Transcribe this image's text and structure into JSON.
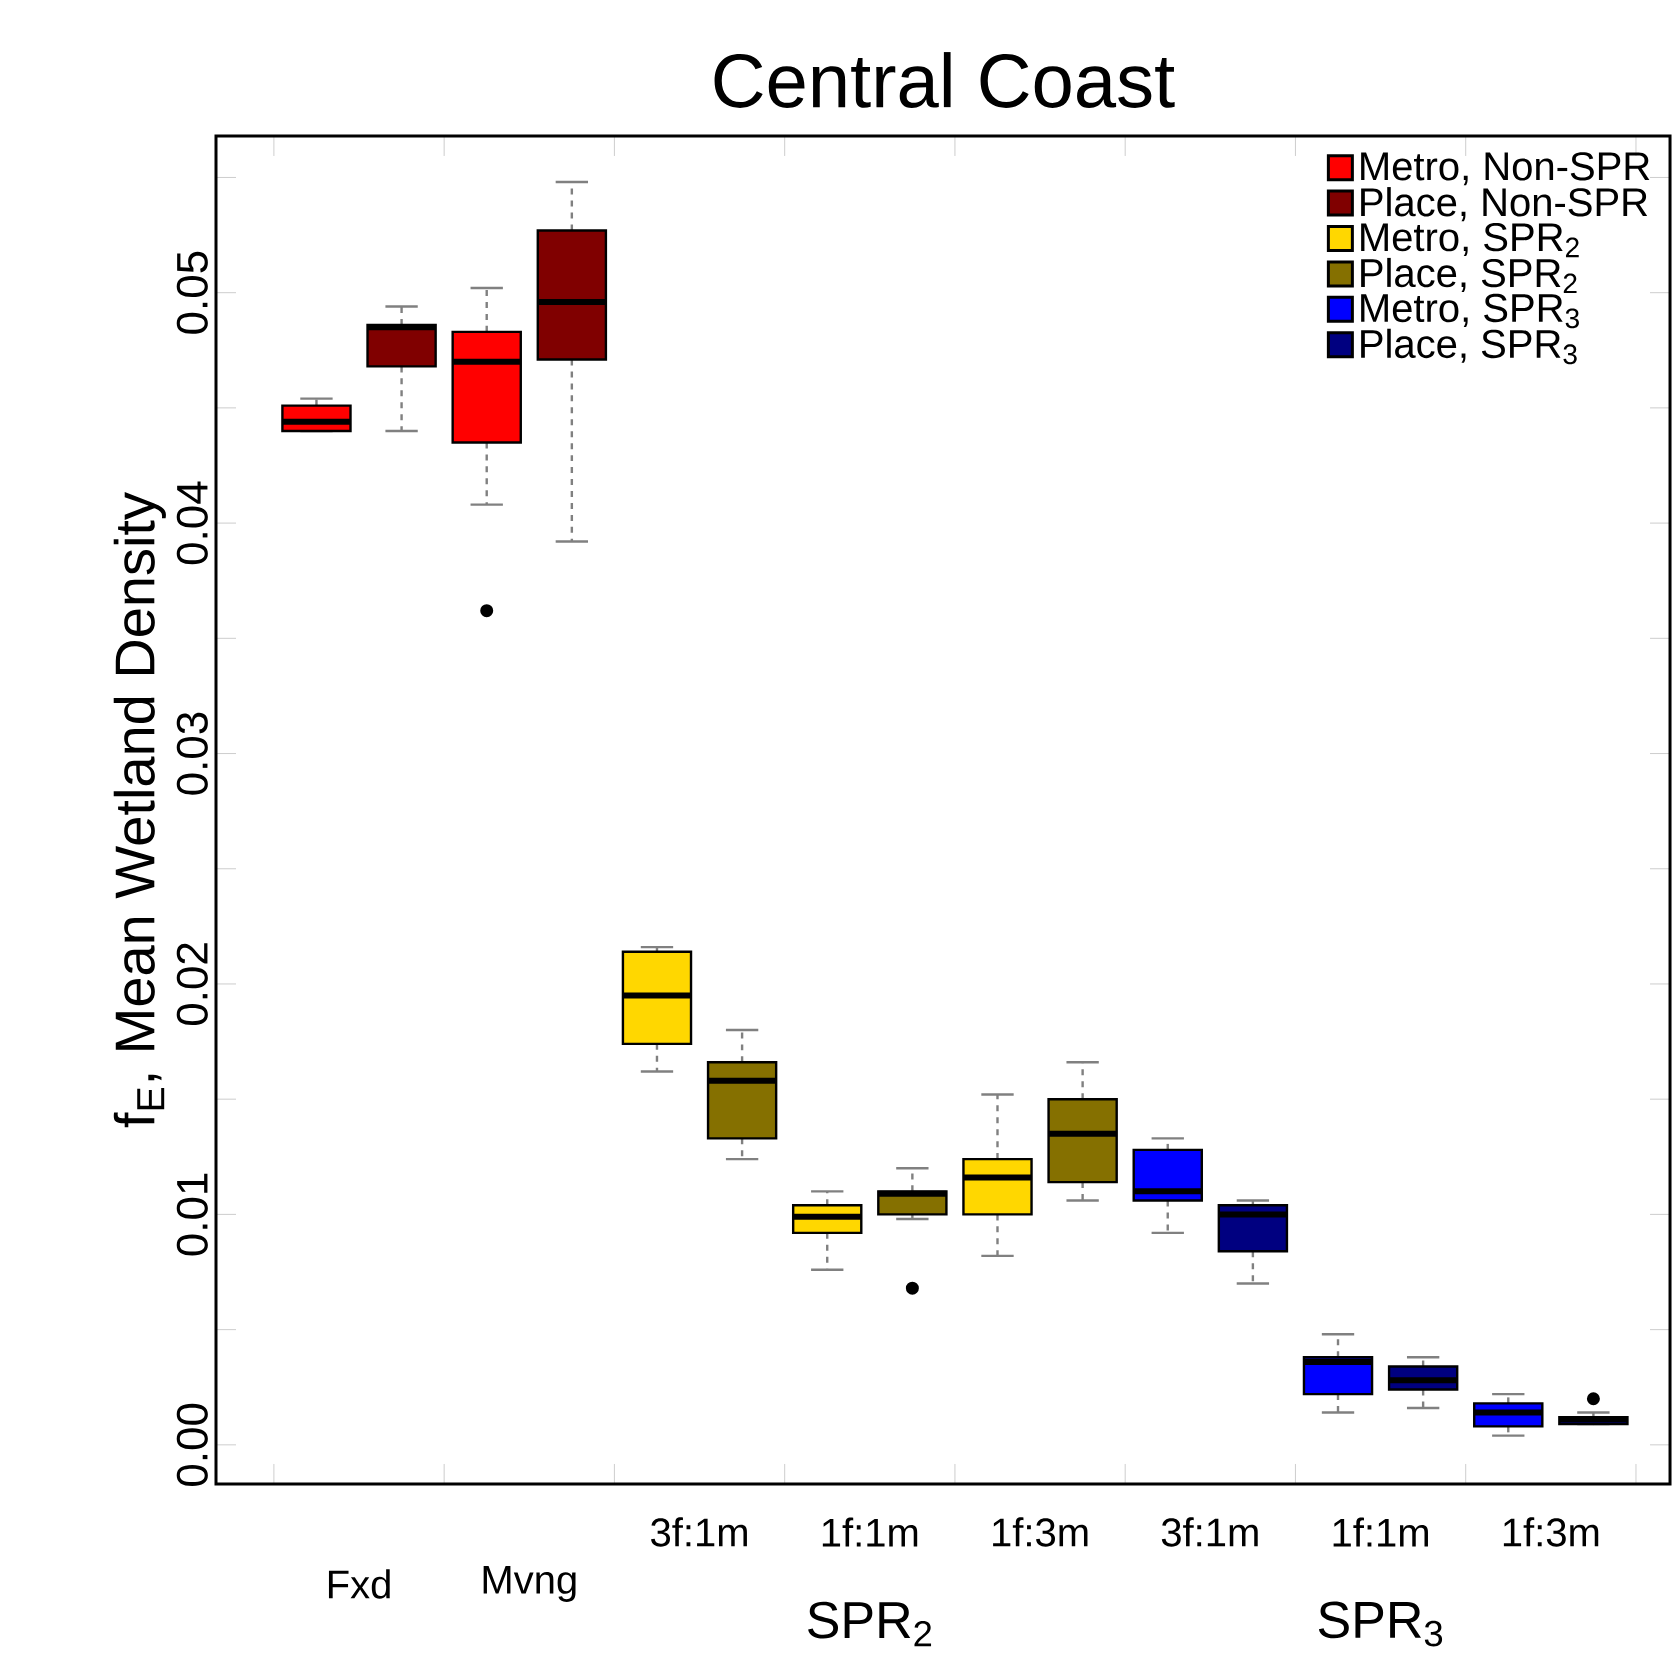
{
  "chart_data": {
    "type": "box",
    "title": "Central Coast",
    "ylabel": "f$_{E}$, Mean Wetland Density",
    "categories": [
      "Fxd",
      "Mvng",
      "3f:1m",
      "1f:1m",
      "1f:3m",
      "3f:1m",
      "1f:1m",
      "1f:3m"
    ],
    "annotations": [
      "SPR$_{2}$",
      "SPR$_{3}$"
    ],
    "ylim": [
      -0.0017,
      0.0568
    ],
    "yticks": [
      {
        "value": 0,
        "label": "0.00"
      },
      {
        "value": 0.005,
        "label": null
      },
      {
        "value": 0.01,
        "label": "0.01"
      },
      {
        "value": 0.015,
        "label": null
      },
      {
        "value": 0.02,
        "label": "0.02"
      },
      {
        "value": 0.025,
        "label": null
      },
      {
        "value": 0.03,
        "label": "0.03"
      },
      {
        "value": 0.035,
        "label": null
      },
      {
        "value": 0.04,
        "label": "0.04"
      },
      {
        "value": 0.045,
        "label": null
      },
      {
        "value": 0.05,
        "label": "0.05"
      },
      {
        "value": 0.055,
        "label": null
      }
    ],
    "legend": "top right",
    "series": [
      {
        "name": "Metro, Non-SPR",
        "color": "#ff0000",
        "boxes": [
          {
            "low": 0.044,
            "q1": 0.044,
            "median": 0.0444,
            "q3": 0.0451,
            "high": 0.0454
          },
          {
            "low": 0.0408,
            "q1": 0.0435,
            "median": 0.047,
            "q3": 0.0483,
            "high": 0.0502,
            "outliers": [
              0.0362
            ]
          },
          null,
          null,
          null,
          null,
          null,
          null
        ]
      },
      {
        "name": "Place, Non-SPR",
        "color": "#800000",
        "boxes": [
          {
            "low": 0.044,
            "q1": 0.0468,
            "median": 0.0485,
            "q3": 0.0486,
            "high": 0.0494
          },
          {
            "low": 0.0392,
            "q1": 0.0471,
            "median": 0.0496,
            "q3": 0.0527,
            "high": 0.0548
          },
          null,
          null,
          null,
          null,
          null,
          null
        ]
      },
      {
        "name": "Metro, SPR$_{2}$",
        "color": "#ffd700",
        "boxes": [
          null,
          null,
          {
            "low": 0.0162,
            "q1": 0.0174,
            "median": 0.0195,
            "q3": 0.0214,
            "high": 0.0216
          },
          {
            "low": 0.0076,
            "q1": 0.0092,
            "median": 0.0099,
            "q3": 0.0104,
            "high": 0.011
          },
          {
            "low": 0.0082,
            "q1": 0.01,
            "median": 0.0116,
            "q3": 0.0124,
            "high": 0.0152
          },
          null,
          null,
          null
        ]
      },
      {
        "name": "Place, SPR$_{2}$",
        "color": "#857000",
        "boxes": [
          null,
          null,
          {
            "low": 0.0124,
            "q1": 0.0133,
            "median": 0.0158,
            "q3": 0.0166,
            "high": 0.018
          },
          {
            "low": 0.0098,
            "q1": 0.01,
            "median": 0.0109,
            "q3": 0.011,
            "high": 0.012,
            "outliers": [
              0.0068
            ]
          },
          {
            "low": 0.0106,
            "q1": 0.0114,
            "median": 0.0135,
            "q3": 0.015,
            "high": 0.0166
          },
          null,
          null,
          null
        ]
      },
      {
        "name": "Metro, SPR$_{3}$",
        "color": "#0000ff",
        "boxes": [
          null,
          null,
          null,
          null,
          null,
          {
            "low": 0.0092,
            "q1": 0.0106,
            "median": 0.011,
            "q3": 0.0128,
            "high": 0.0133
          },
          {
            "low": 0.0014,
            "q1": 0.0022,
            "median": 0.0036,
            "q3": 0.0038,
            "high": 0.0048
          },
          {
            "low": 0.0004,
            "q1": 0.0008,
            "median": 0.0014,
            "q3": 0.0018,
            "high": 0.0022
          }
        ]
      },
      {
        "name": "Place, SPR$_{3}$",
        "color": "#000080",
        "boxes": [
          null,
          null,
          null,
          null,
          null,
          {
            "low": 0.007,
            "q1": 0.0084,
            "median": 0.01,
            "q3": 0.0104,
            "high": 0.0106
          },
          {
            "low": 0.0016,
            "q1": 0.0024,
            "median": 0.0028,
            "q3": 0.0034,
            "high": 0.0038
          },
          {
            "low": 0.0009,
            "q1": 0.0009,
            "median": 0.0011,
            "q3": 0.0012,
            "high": 0.0014,
            "outliers": [
              0.002
            ]
          }
        ]
      }
    ]
  }
}
